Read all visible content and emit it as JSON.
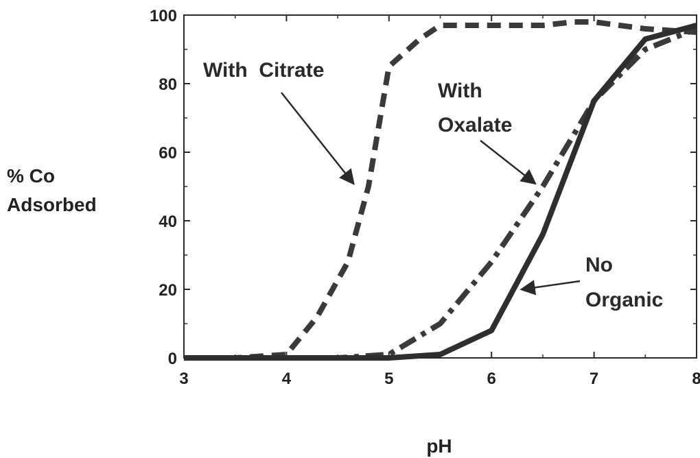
{
  "chart_data": {
    "type": "line",
    "title": "",
    "xlabel": "pH",
    "ylabel_lines": [
      "% Co",
      "Adsorbed"
    ],
    "xlim": [
      3,
      8
    ],
    "ylim": [
      0,
      100
    ],
    "xticks": [
      3,
      4,
      5,
      6,
      7,
      8
    ],
    "yticks": [
      0,
      20,
      40,
      60,
      80,
      100
    ],
    "grid": false,
    "legend": "none",
    "series": [
      {
        "key": "citrate",
        "label": "With Citrate",
        "style": "dashed",
        "color": "#3a3a3a",
        "x": [
          3,
          3.5,
          4,
          4.3,
          4.6,
          4.8,
          5,
          5.3,
          5.5,
          6,
          6.5,
          6.8,
          7,
          7.5,
          8
        ],
        "y": [
          0,
          0,
          1,
          12,
          28,
          50,
          85,
          93,
          97,
          97,
          97,
          98,
          98,
          96,
          95
        ]
      },
      {
        "key": "oxalate",
        "label": "With Oxalate",
        "style": "dash-dot",
        "color": "#3a3a3a",
        "x": [
          3,
          3.5,
          4,
          4.5,
          5,
          5.5,
          6,
          6.5,
          7,
          7.5,
          8
        ],
        "y": [
          0,
          0,
          0,
          0,
          1,
          10,
          28,
          50,
          75,
          90,
          96
        ]
      },
      {
        "key": "no_organic",
        "label": "No Organic",
        "style": "solid",
        "color": "#2e2e2e",
        "x": [
          3,
          3.5,
          4,
          4.5,
          5,
          5.5,
          6,
          6.5,
          7,
          7.5,
          8
        ],
        "y": [
          0,
          0,
          0,
          0,
          0,
          1,
          8,
          36,
          75,
          93,
          97
        ]
      }
    ],
    "annotations": [
      {
        "key": "citrate",
        "lines": [
          "With  Citrate"
        ],
        "arrow_to": {
          "x": 4.65,
          "y": 51
        }
      },
      {
        "key": "oxalate",
        "lines": [
          "With",
          "Oxalate"
        ],
        "arrow_to": {
          "x": 6.42,
          "y": 51
        }
      },
      {
        "key": "no_organic",
        "lines": [
          "No",
          "Organic"
        ],
        "arrow_to": {
          "x": 6.3,
          "y": 20
        }
      }
    ]
  }
}
